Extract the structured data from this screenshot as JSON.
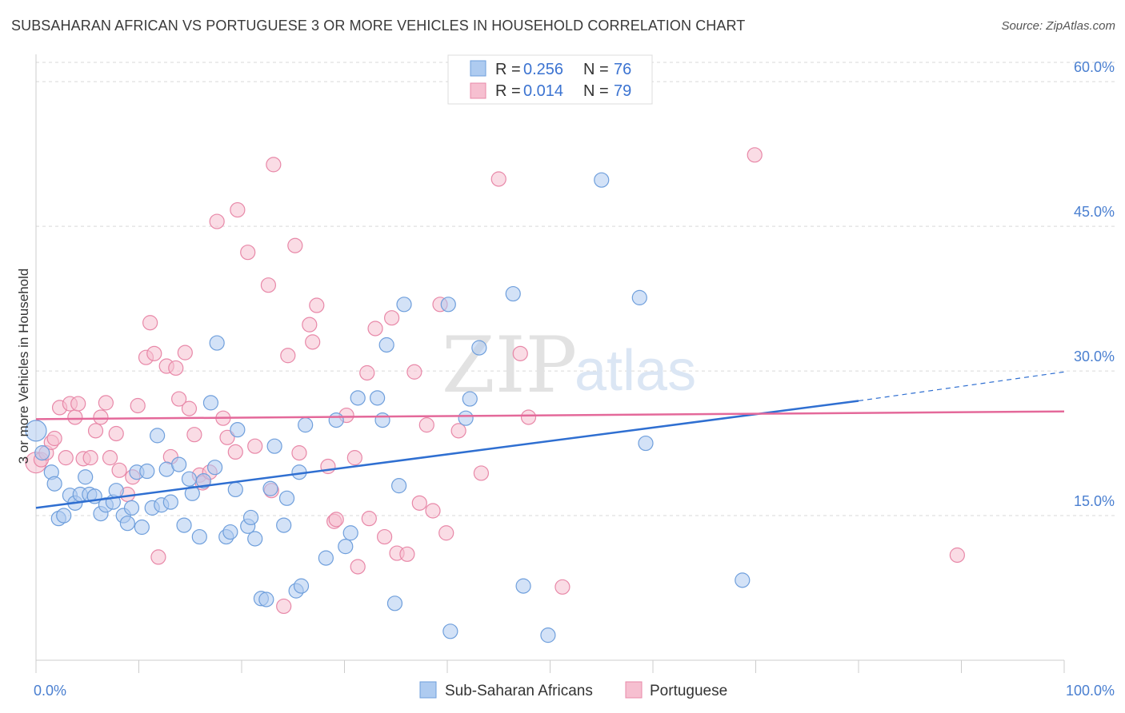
{
  "title": "SUBSAHARAN AFRICAN VS PORTUGUESE 3 OR MORE VEHICLES IN HOUSEHOLD CORRELATION CHART",
  "source": "Source: ZipAtlas.com",
  "watermark": {
    "part1": "ZIP",
    "part2": "atlas"
  },
  "colors": {
    "blue_fill": "#aecbf0",
    "blue_stroke": "#6f9fdc",
    "blue_line": "#2f6fd1",
    "pink_fill": "#f6bfd0",
    "pink_stroke": "#e888a8",
    "pink_line": "#e4699a",
    "axis_label": "#4a7fd0",
    "grid": "#d9d9d9"
  },
  "legend": {
    "rows": [
      {
        "r_label": "R = ",
        "r_value": "0.256",
        "n_label": "N = ",
        "n_value": "76"
      },
      {
        "r_label": "R = ",
        "r_value": "0.014",
        "n_label": "N = ",
        "n_value": "79"
      }
    ]
  },
  "chart_data": {
    "type": "scatter",
    "title": "SUBSAHARAN AFRICAN VS PORTUGUESE 3 OR MORE VEHICLES IN HOUSEHOLD CORRELATION CHART",
    "xlabel": "",
    "ylabel": "3 or more Vehicles in Household",
    "xlim": [
      0,
      100
    ],
    "ylim": [
      0,
      62
    ],
    "x_tick_labels": [
      "0.0%",
      "100.0%"
    ],
    "y_ticks": [
      15,
      30,
      45,
      60
    ],
    "y_tick_labels": [
      "15.0%",
      "30.0%",
      "45.0%",
      "60.0%"
    ],
    "grid": true,
    "legend_position": "top-center",
    "series": [
      {
        "name": "Sub-Saharan Africans",
        "color": "#aecbf0",
        "trend": {
          "x0": 0,
          "y0": 15.8,
          "x1": 80,
          "y1": 26.9,
          "dashed_to_x": 100,
          "dashed_to_y": 29.9
        },
        "points": [
          [
            0,
            23.8
          ],
          [
            0.6,
            21.5
          ],
          [
            1.5,
            19.5
          ],
          [
            1.8,
            18.3
          ],
          [
            2.2,
            14.7
          ],
          [
            2.7,
            15.0
          ],
          [
            3.3,
            17.1
          ],
          [
            3.8,
            16.3
          ],
          [
            4.3,
            17.2
          ],
          [
            4.8,
            19.0
          ],
          [
            5.2,
            17.2
          ],
          [
            5.7,
            17.0
          ],
          [
            6.3,
            15.2
          ],
          [
            6.8,
            16.1
          ],
          [
            7.5,
            16.4
          ],
          [
            7.8,
            17.6
          ],
          [
            8.5,
            15.0
          ],
          [
            8.9,
            14.2
          ],
          [
            9.3,
            15.8
          ],
          [
            9.8,
            19.5
          ],
          [
            10.3,
            13.8
          ],
          [
            10.8,
            19.6
          ],
          [
            11.3,
            15.8
          ],
          [
            11.8,
            23.3
          ],
          [
            12.2,
            16.1
          ],
          [
            12.7,
            19.8
          ],
          [
            13.1,
            16.4
          ],
          [
            13.9,
            20.3
          ],
          [
            14.4,
            14.0
          ],
          [
            14.9,
            18.8
          ],
          [
            15.2,
            17.3
          ],
          [
            15.9,
            12.8
          ],
          [
            16.3,
            18.6
          ],
          [
            17.0,
            26.7
          ],
          [
            17.4,
            20.0
          ],
          [
            17.6,
            32.9
          ],
          [
            18.5,
            12.8
          ],
          [
            18.9,
            13.3
          ],
          [
            19.4,
            17.7
          ],
          [
            19.6,
            23.9
          ],
          [
            20.6,
            13.9
          ],
          [
            20.9,
            14.8
          ],
          [
            21.3,
            12.6
          ],
          [
            21.9,
            6.4
          ],
          [
            22.4,
            6.3
          ],
          [
            22.8,
            17.8
          ],
          [
            23.2,
            22.2
          ],
          [
            24.1,
            14.0
          ],
          [
            24.4,
            16.8
          ],
          [
            25.3,
            7.2
          ],
          [
            25.6,
            19.5
          ],
          [
            25.8,
            7.7
          ],
          [
            26.2,
            24.4
          ],
          [
            28.2,
            10.6
          ],
          [
            29.2,
            24.9
          ],
          [
            30.1,
            11.8
          ],
          [
            30.6,
            13.2
          ],
          [
            31.3,
            27.2
          ],
          [
            33.2,
            27.2
          ],
          [
            33.7,
            24.9
          ],
          [
            34.1,
            32.7
          ],
          [
            34.9,
            5.9
          ],
          [
            35.3,
            18.1
          ],
          [
            35.8,
            36.9
          ],
          [
            40.1,
            36.9
          ],
          [
            40.3,
            3.0
          ],
          [
            41.8,
            25.1
          ],
          [
            42.2,
            27.1
          ],
          [
            43.1,
            32.4
          ],
          [
            46.4,
            38.0
          ],
          [
            47.4,
            7.7
          ],
          [
            49.8,
            2.6
          ],
          [
            55.0,
            49.8
          ],
          [
            58.7,
            37.6
          ],
          [
            59.3,
            22.5
          ],
          [
            68.7,
            8.3
          ]
        ]
      },
      {
        "name": "Portuguese",
        "color": "#f6bfd0",
        "trend": {
          "x0": 0,
          "y0": 25.0,
          "x1": 100,
          "y1": 25.8
        },
        "points": [
          [
            0,
            20.5
          ],
          [
            0.5,
            20.8
          ],
          [
            1.0,
            21.5
          ],
          [
            1.5,
            22.6
          ],
          [
            1.8,
            23.0
          ],
          [
            2.3,
            26.2
          ],
          [
            2.9,
            21.0
          ],
          [
            3.3,
            26.6
          ],
          [
            3.8,
            25.2
          ],
          [
            4.1,
            26.6
          ],
          [
            4.6,
            20.9
          ],
          [
            5.3,
            21.0
          ],
          [
            5.8,
            23.8
          ],
          [
            6.3,
            25.2
          ],
          [
            6.8,
            26.7
          ],
          [
            7.2,
            21.0
          ],
          [
            7.8,
            23.5
          ],
          [
            8.1,
            19.7
          ],
          [
            8.9,
            17.2
          ],
          [
            9.4,
            19.0
          ],
          [
            9.9,
            26.4
          ],
          [
            10.7,
            31.4
          ],
          [
            11.1,
            35.0
          ],
          [
            11.5,
            31.8
          ],
          [
            11.9,
            10.7
          ],
          [
            12.7,
            30.5
          ],
          [
            13.1,
            21.1
          ],
          [
            13.6,
            30.3
          ],
          [
            13.9,
            27.1
          ],
          [
            14.5,
            31.9
          ],
          [
            14.9,
            26.1
          ],
          [
            15.4,
            23.4
          ],
          [
            15.9,
            19.2
          ],
          [
            16.2,
            18.4
          ],
          [
            16.9,
            19.5
          ],
          [
            17.6,
            45.5
          ],
          [
            18.2,
            25.1
          ],
          [
            18.6,
            23.1
          ],
          [
            19.4,
            21.6
          ],
          [
            19.6,
            46.7
          ],
          [
            20.6,
            42.3
          ],
          [
            21.3,
            22.2
          ],
          [
            22.6,
            38.9
          ],
          [
            22.9,
            17.6
          ],
          [
            23.1,
            51.4
          ],
          [
            24.1,
            5.6
          ],
          [
            24.5,
            31.6
          ],
          [
            25.2,
            43.0
          ],
          [
            25.6,
            21.5
          ],
          [
            26.6,
            34.8
          ],
          [
            26.9,
            33.0
          ],
          [
            27.3,
            36.8
          ],
          [
            28.4,
            20.1
          ],
          [
            29.0,
            14.4
          ],
          [
            29.2,
            14.6
          ],
          [
            30.2,
            25.4
          ],
          [
            31.0,
            21.0
          ],
          [
            31.3,
            9.7
          ],
          [
            32.2,
            29.8
          ],
          [
            32.4,
            14.7
          ],
          [
            33.0,
            34.4
          ],
          [
            33.9,
            12.8
          ],
          [
            34.6,
            35.5
          ],
          [
            35.1,
            11.1
          ],
          [
            36.1,
            11.0
          ],
          [
            36.8,
            29.9
          ],
          [
            37.3,
            16.3
          ],
          [
            38.0,
            24.4
          ],
          [
            38.6,
            15.5
          ],
          [
            39.3,
            36.9
          ],
          [
            39.9,
            13.2
          ],
          [
            41.1,
            23.8
          ],
          [
            43.3,
            19.4
          ],
          [
            45.0,
            49.9
          ],
          [
            47.1,
            31.8
          ],
          [
            47.9,
            25.2
          ],
          [
            51.2,
            7.6
          ],
          [
            69.9,
            52.4
          ],
          [
            89.6,
            10.9
          ]
        ]
      }
    ]
  }
}
